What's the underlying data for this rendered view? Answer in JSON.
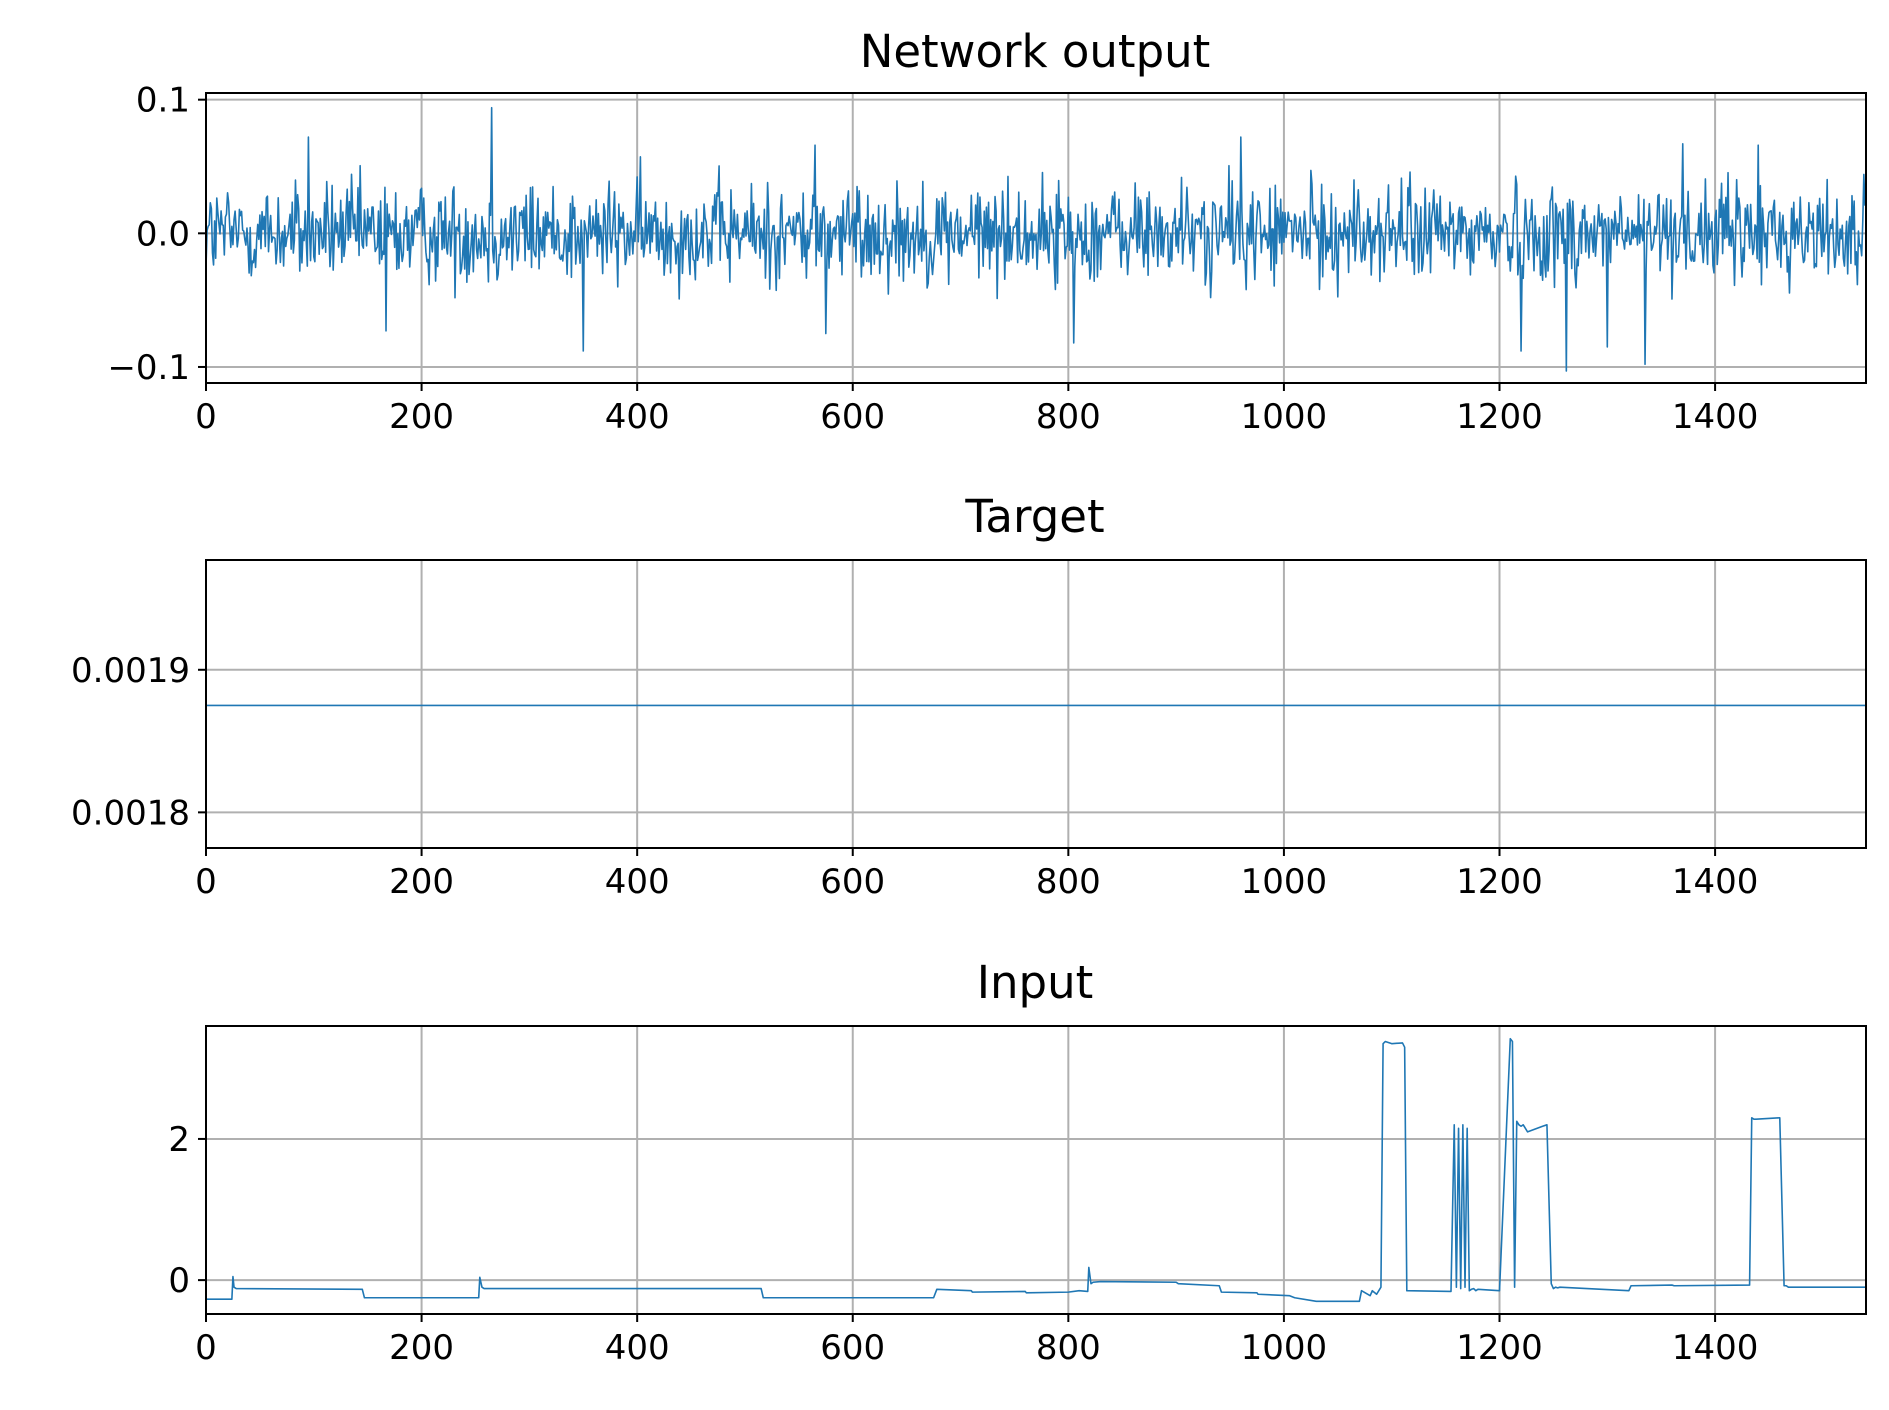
{
  "colors": {
    "line": "#1f77b4",
    "grid": "#b0b0b0",
    "axes": "#000000",
    "background": "#ffffff"
  },
  "chart_data": [
    {
      "type": "line",
      "title": "Network output",
      "xlabel": "",
      "ylabel": "",
      "grid": true,
      "xlim": [
        0,
        1540
      ],
      "ylim": [
        -0.112,
        0.105
      ],
      "xticks": [
        0,
        200,
        400,
        600,
        800,
        1000,
        1200,
        1400
      ],
      "xtick_labels": [
        "0",
        "200",
        "400",
        "600",
        "800",
        "1000",
        "1200",
        "1400"
      ],
      "yticks": [
        -0.1,
        0.0,
        0.1
      ],
      "ytick_labels": [
        "−0.1",
        "0.0",
        "0.1"
      ],
      "series": [
        {
          "name": "output",
          "generator": "noise",
          "n": 1540,
          "mean": 0.0,
          "amplitude": 0.02,
          "spikes": [
            [
              265,
              0.094
            ],
            [
              350,
              -0.088
            ],
            [
              805,
              -0.082
            ],
            [
              1220,
              -0.088
            ],
            [
              1262,
              -0.103
            ],
            [
              1300,
              -0.085
            ],
            [
              1335,
              -0.098
            ],
            [
              167,
              -0.073
            ],
            [
              95,
              0.072
            ],
            [
              565,
              0.066
            ],
            [
              575,
              -0.075
            ],
            [
              960,
              0.072
            ],
            [
              1370,
              0.067
            ],
            [
              1440,
              0.066
            ]
          ]
        }
      ]
    },
    {
      "type": "line",
      "title": "Target",
      "xlabel": "",
      "ylabel": "",
      "grid": true,
      "xlim": [
        0,
        1540
      ],
      "ylim": [
        0.001775,
        0.001977
      ],
      "xticks": [
        0,
        200,
        400,
        600,
        800,
        1000,
        1200,
        1400
      ],
      "xtick_labels": [
        "0",
        "200",
        "400",
        "600",
        "800",
        "1000",
        "1200",
        "1400"
      ],
      "yticks": [
        0.0018,
        0.0019
      ],
      "ytick_labels": [
        "0.0018",
        "0.0019"
      ],
      "series": [
        {
          "name": "target",
          "x": [
            0,
            1540
          ],
          "y": [
            0.001875,
            0.001875
          ]
        }
      ]
    },
    {
      "type": "line",
      "title": "Input",
      "xlabel": "",
      "ylabel": "",
      "grid": true,
      "xlim": [
        0,
        1540
      ],
      "ylim": [
        -0.48,
        3.6
      ],
      "xticks": [
        0,
        200,
        400,
        600,
        800,
        1000,
        1200,
        1400
      ],
      "xtick_labels": [
        "0",
        "200",
        "400",
        "600",
        "800",
        "1000",
        "1200",
        "1400"
      ],
      "yticks": [
        0,
        2
      ],
      "ytick_labels": [
        "0",
        "2"
      ],
      "series": [
        {
          "name": "input",
          "x": [
            0,
            24,
            25,
            26,
            28,
            145,
            147,
            253,
            254,
            256,
            258,
            515,
            517,
            675,
            678,
            710,
            711,
            760,
            761,
            800,
            810,
            818,
            819,
            821,
            823,
            830,
            900,
            902,
            940,
            942,
            975,
            976,
            1005,
            1010,
            1030,
            1070,
            1072,
            1080,
            1082,
            1086,
            1090,
            1092,
            1094,
            1100,
            1110,
            1112,
            1114,
            1155,
            1158,
            1160,
            1162,
            1164,
            1166,
            1168,
            1170,
            1172,
            1174,
            1176,
            1178,
            1180,
            1200,
            1210,
            1212,
            1214,
            1216,
            1218,
            1220,
            1222,
            1224,
            1226,
            1240,
            1244,
            1248,
            1250,
            1252,
            1254,
            1256,
            1320,
            1322,
            1360,
            1362,
            1432,
            1434,
            1436,
            1438,
            1460,
            1464,
            1466,
            1468,
            1540
          ],
          "y": [
            -0.27,
            -0.27,
            0.05,
            -0.1,
            -0.12,
            -0.13,
            -0.25,
            -0.25,
            0.04,
            -0.1,
            -0.12,
            -0.12,
            -0.25,
            -0.25,
            -0.13,
            -0.15,
            -0.17,
            -0.16,
            -0.18,
            -0.17,
            -0.15,
            -0.16,
            0.18,
            -0.05,
            -0.03,
            -0.02,
            -0.03,
            -0.05,
            -0.08,
            -0.17,
            -0.18,
            -0.2,
            -0.22,
            -0.25,
            -0.3,
            -0.3,
            -0.15,
            -0.22,
            -0.15,
            -0.2,
            -0.1,
            3.35,
            3.38,
            3.35,
            3.36,
            3.3,
            -0.15,
            -0.16,
            2.2,
            -0.1,
            2.15,
            -0.12,
            2.2,
            -0.1,
            2.15,
            -0.15,
            -0.13,
            -0.12,
            -0.15,
            -0.13,
            -0.15,
            3.42,
            3.38,
            -0.1,
            2.25,
            2.2,
            2.18,
            2.2,
            2.15,
            2.1,
            2.18,
            2.2,
            -0.05,
            -0.12,
            -0.1,
            -0.11,
            -0.1,
            -0.15,
            -0.08,
            -0.07,
            -0.08,
            -0.07,
            2.3,
            2.28,
            2.28,
            2.3,
            -0.08,
            -0.08,
            -0.1,
            -0.1
          ]
        }
      ]
    }
  ]
}
